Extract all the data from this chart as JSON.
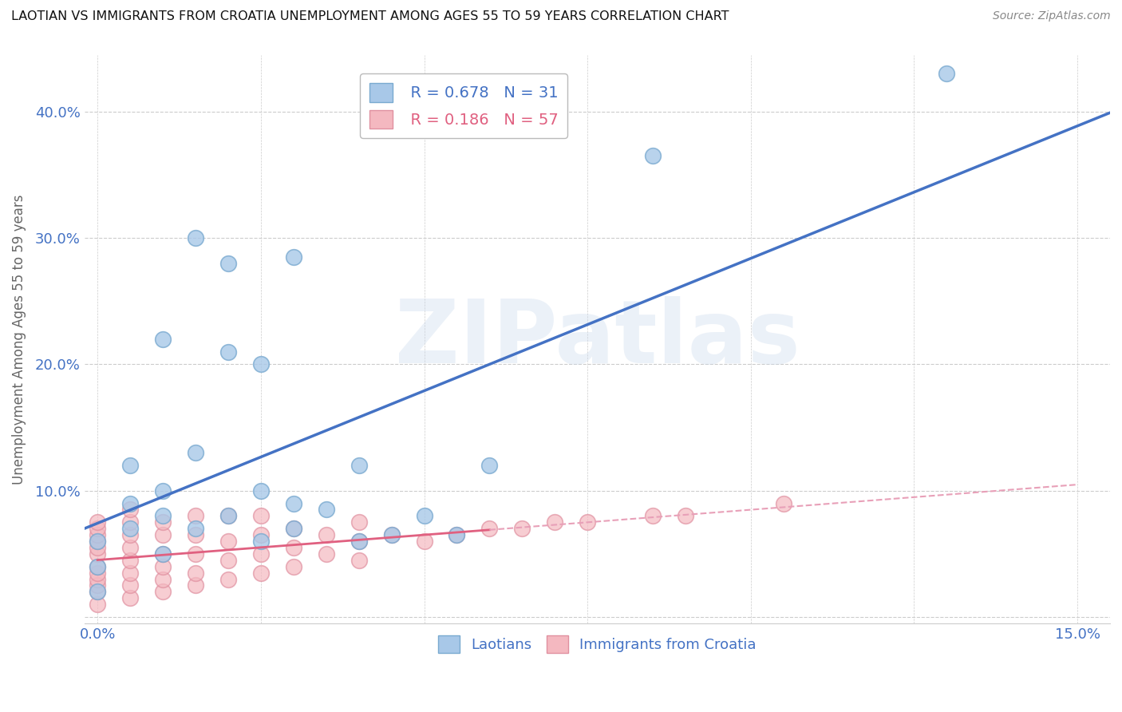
{
  "title": "LAOTIAN VS IMMIGRANTS FROM CROATIA UNEMPLOYMENT AMONG AGES 55 TO 59 YEARS CORRELATION CHART",
  "source": "Source: ZipAtlas.com",
  "ylabel": "Unemployment Among Ages 55 to 59 years",
  "xlim": [
    -0.002,
    0.155
  ],
  "ylim": [
    -0.005,
    0.445
  ],
  "xtick_positions": [
    0.0,
    0.025,
    0.05,
    0.075,
    0.1,
    0.125,
    0.15
  ],
  "xtick_labels": [
    "0.0%",
    "",
    "",
    "",
    "",
    "",
    "15.0%"
  ],
  "ytick_positions": [
    0.0,
    0.1,
    0.2,
    0.3,
    0.4
  ],
  "ytick_labels": [
    "",
    "10.0%",
    "20.0%",
    "30.0%",
    "40.0%"
  ],
  "legend1_r": "0.678",
  "legend1_n": "31",
  "legend2_r": "0.186",
  "legend2_n": "57",
  "watermark": "ZIPatlas",
  "blue_scatter_color": "#a8c8e8",
  "blue_edge_color": "#7aaad0",
  "pink_scatter_color": "#f4b8c0",
  "pink_edge_color": "#e090a0",
  "blue_line_color": "#4472c4",
  "pink_line_color": "#e06080",
  "pink_dash_color": "#e8a0b8",
  "laotian_x": [
    0.0,
    0.0,
    0.0,
    0.005,
    0.005,
    0.005,
    0.01,
    0.01,
    0.01,
    0.01,
    0.015,
    0.015,
    0.015,
    0.02,
    0.02,
    0.02,
    0.025,
    0.025,
    0.025,
    0.03,
    0.03,
    0.03,
    0.035,
    0.04,
    0.04,
    0.045,
    0.05,
    0.055,
    0.06,
    0.085,
    0.13
  ],
  "laotian_y": [
    0.02,
    0.04,
    0.06,
    0.07,
    0.09,
    0.12,
    0.05,
    0.08,
    0.1,
    0.22,
    0.07,
    0.13,
    0.3,
    0.08,
    0.28,
    0.21,
    0.06,
    0.1,
    0.2,
    0.07,
    0.09,
    0.285,
    0.085,
    0.06,
    0.12,
    0.065,
    0.08,
    0.065,
    0.12,
    0.365,
    0.43
  ],
  "croatia_x": [
    0.0,
    0.0,
    0.0,
    0.0,
    0.0,
    0.0,
    0.0,
    0.0,
    0.0,
    0.0,
    0.0,
    0.0,
    0.005,
    0.005,
    0.005,
    0.005,
    0.005,
    0.005,
    0.005,
    0.005,
    0.01,
    0.01,
    0.01,
    0.01,
    0.01,
    0.01,
    0.015,
    0.015,
    0.015,
    0.015,
    0.015,
    0.02,
    0.02,
    0.02,
    0.02,
    0.025,
    0.025,
    0.025,
    0.025,
    0.03,
    0.03,
    0.03,
    0.035,
    0.035,
    0.04,
    0.04,
    0.04,
    0.045,
    0.05,
    0.055,
    0.06,
    0.065,
    0.07,
    0.075,
    0.085,
    0.09,
    0.105
  ],
  "croatia_y": [
    0.01,
    0.02,
    0.025,
    0.03,
    0.035,
    0.04,
    0.05,
    0.055,
    0.06,
    0.065,
    0.07,
    0.075,
    0.015,
    0.025,
    0.035,
    0.045,
    0.055,
    0.065,
    0.075,
    0.085,
    0.02,
    0.03,
    0.04,
    0.05,
    0.065,
    0.075,
    0.025,
    0.035,
    0.05,
    0.065,
    0.08,
    0.03,
    0.045,
    0.06,
    0.08,
    0.035,
    0.05,
    0.065,
    0.08,
    0.04,
    0.055,
    0.07,
    0.05,
    0.065,
    0.045,
    0.06,
    0.075,
    0.065,
    0.06,
    0.065,
    0.07,
    0.07,
    0.075,
    0.075,
    0.08,
    0.08,
    0.09
  ]
}
